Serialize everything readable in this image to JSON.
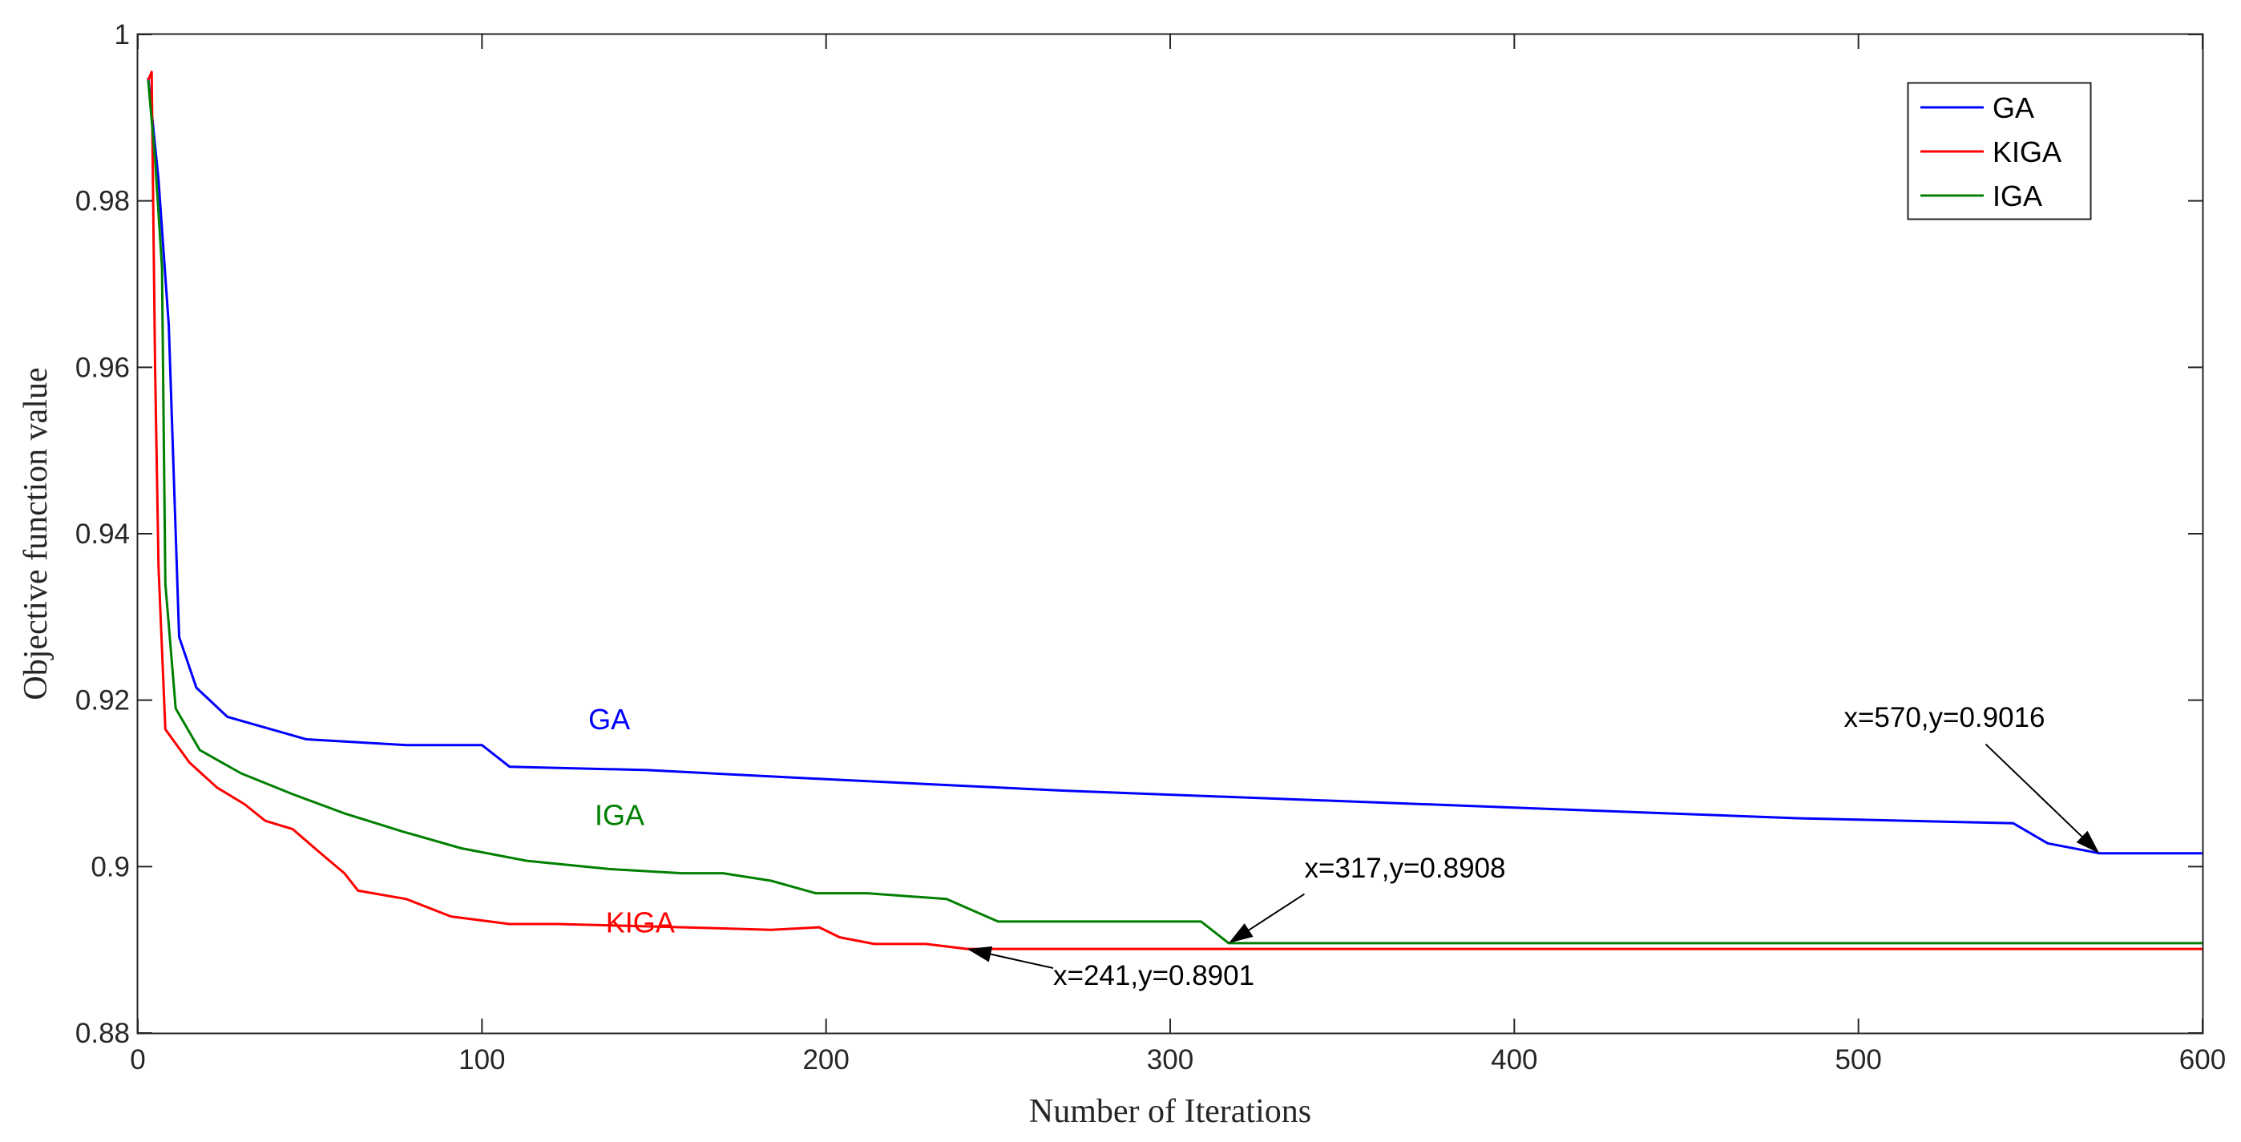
{
  "chart_data": {
    "type": "line",
    "title": "",
    "xlabel": "Number of Iterations",
    "ylabel": "Objective function value",
    "xlim": [
      0,
      600
    ],
    "ylim": [
      0.88,
      1.0
    ],
    "xticks": [
      0,
      100,
      200,
      300,
      400,
      500,
      600
    ],
    "yticks": [
      0.88,
      0.9,
      0.92,
      0.94,
      0.96,
      0.98,
      1.0
    ],
    "xtick_labels": [
      "0",
      "100",
      "200",
      "300",
      "400",
      "500",
      "600"
    ],
    "ytick_labels": [
      "0.88",
      "0.9",
      "0.92",
      "0.94",
      "0.96",
      "0.98",
      "1"
    ],
    "grid": false,
    "legend_position": "top-right",
    "series": [
      {
        "name": "GA",
        "color": "#0000ff",
        "x": [
          3,
          6,
          9,
          12,
          17,
          26,
          49,
          78,
          100,
          108,
          148,
          200,
          270,
          483,
          545,
          555,
          570,
          600
        ],
        "y": [
          0.9948,
          0.9825,
          0.965,
          0.9276,
          0.9215,
          0.918,
          0.9153,
          0.9146,
          0.9146,
          0.912,
          0.9116,
          0.9105,
          0.9091,
          0.9058,
          0.9052,
          0.9028,
          0.9016,
          0.9016
        ]
      },
      {
        "name": "KIGA",
        "color": "#ff0000",
        "x": [
          3,
          4,
          5,
          6,
          8,
          15,
          23,
          31,
          37,
          45,
          52,
          60,
          64,
          78,
          91,
          108,
          122,
          150,
          184,
          198,
          204,
          214,
          229,
          241,
          600
        ],
        "y": [
          0.9945,
          0.9955,
          0.96,
          0.936,
          0.9165,
          0.9125,
          0.9095,
          0.9075,
          0.9055,
          0.9045,
          0.902,
          0.8992,
          0.8971,
          0.8961,
          0.894,
          0.8931,
          0.8931,
          0.8928,
          0.8924,
          0.8927,
          0.8915,
          0.8907,
          0.8907,
          0.8901,
          0.8901
        ]
      },
      {
        "name": "IGA",
        "color": "#007f00",
        "x": [
          3,
          5,
          7,
          8,
          11,
          18,
          30,
          45,
          60,
          77,
          94,
          113,
          137,
          158,
          170,
          184,
          197,
          212,
          235,
          250,
          309,
          317,
          600
        ],
        "y": [
          0.9945,
          0.985,
          0.972,
          0.934,
          0.919,
          0.914,
          0.9112,
          0.9087,
          0.9064,
          0.9042,
          0.9022,
          0.9007,
          0.8997,
          0.8992,
          0.8992,
          0.8983,
          0.8968,
          0.8968,
          0.8961,
          0.8934,
          0.8934,
          0.8908,
          0.8908
        ]
      }
    ],
    "series_labels": [
      {
        "text": "GA",
        "color": "#0000ff",
        "x": 137,
        "y": 0.9165
      },
      {
        "text": "IGA",
        "color": "#007f00",
        "x": 140,
        "y": 0.905
      },
      {
        "text": "KIGA",
        "color": "#ff0000",
        "x": 146,
        "y": 0.8921
      }
    ],
    "annotations": [
      {
        "text": "x=570,y=0.9016",
        "point": [
          570,
          0.9016
        ],
        "label_x": 525,
        "label_y": 0.9168,
        "tail": [
          537,
          0.9147
        ],
        "anchor": "middle"
      },
      {
        "text": "x=317,y=0.8908",
        "point": [
          317,
          0.8908
        ],
        "label_x": 339,
        "label_y": 0.8987,
        "tail": [
          339,
          0.8967
        ],
        "anchor": "start"
      },
      {
        "text": "x=241,y=0.8901",
        "point": [
          241,
          0.8901
        ],
        "label_x": 266,
        "label_y": 0.8858,
        "tail": [
          266,
          0.8878
        ],
        "anchor": "start"
      }
    ]
  }
}
